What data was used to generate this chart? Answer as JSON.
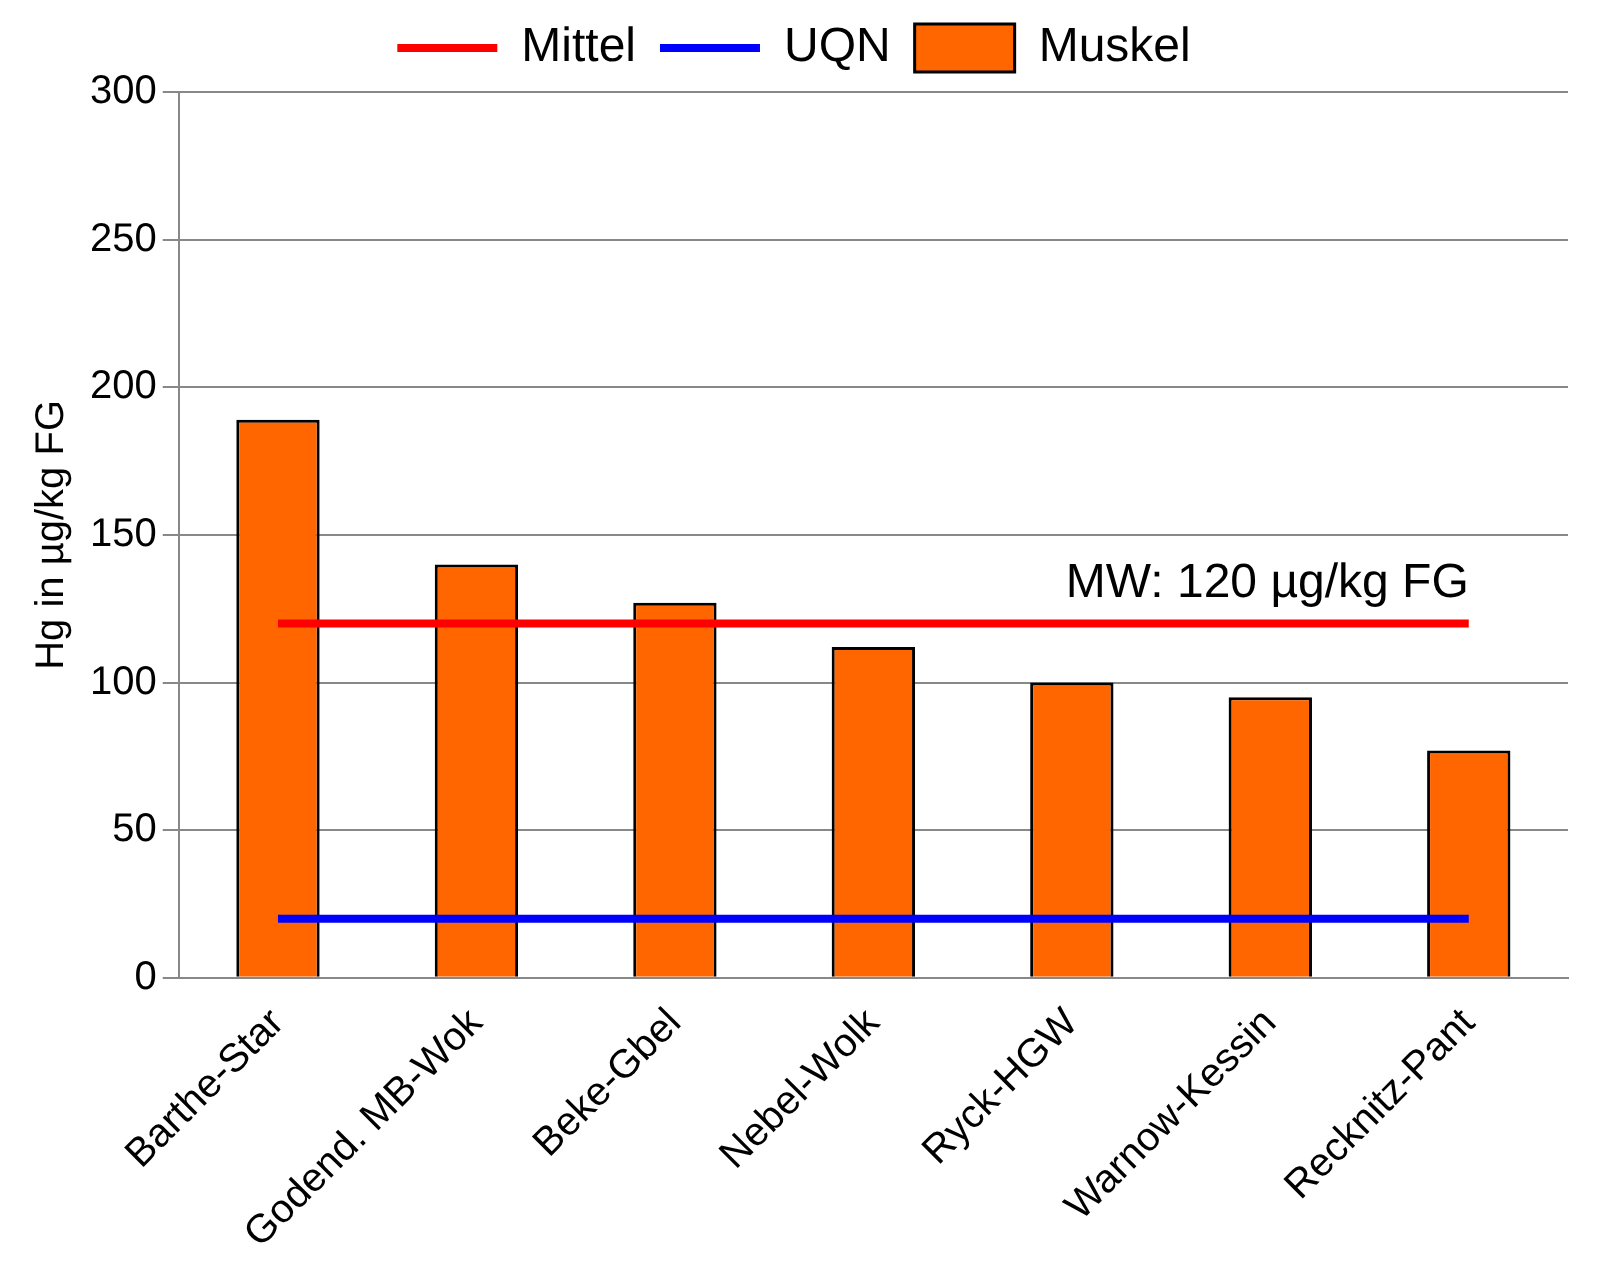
{
  "chart_data": {
    "type": "bar",
    "ylabel": "Hg in µg/kg FG",
    "categories": [
      "Barthe-Star",
      "Godend. MB-Wok",
      "Beke-Gbel",
      "Nebel-Wolk",
      "Ryck-HGW",
      "Warnow-Kessin",
      "Recknitz-Pant"
    ],
    "series": [
      {
        "name": "Muskel",
        "color": "#ff6600",
        "values": [
          189,
          140,
          127,
          112,
          100,
          95,
          77
        ]
      },
      {
        "name": "Mittel",
        "type": "line",
        "color": "#ff0000",
        "values": [
          120,
          120,
          120,
          120,
          120,
          120,
          120
        ]
      },
      {
        "name": "UQN",
        "type": "line",
        "color": "#0000ff",
        "values": [
          20,
          20,
          20,
          20,
          20,
          20,
          20
        ]
      }
    ],
    "ylim": [
      0,
      300
    ],
    "yticks": [
      0,
      50,
      100,
      150,
      200,
      250,
      300
    ],
    "grid": "y",
    "legend": "top",
    "marker": "none",
    "annotations": [
      {
        "text": "MW: 120 µg/kg FG",
        "x": "Recknitz-Pant",
        "y": 120
      }
    ]
  }
}
